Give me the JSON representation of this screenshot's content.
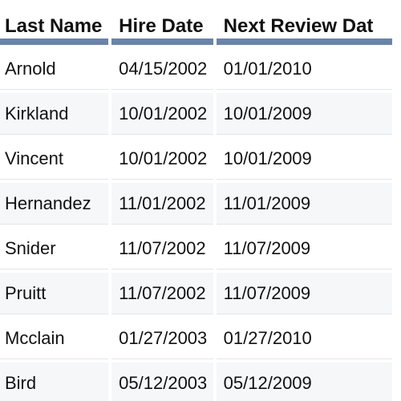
{
  "table": {
    "headers": [
      "Last Name",
      "Hire Date",
      "Next Review Dat"
    ],
    "rows": [
      [
        "Arnold",
        "04/15/2002",
        "01/01/2010"
      ],
      [
        "Kirkland",
        "10/01/2002",
        "10/01/2009"
      ],
      [
        "Vincent",
        "10/01/2002",
        "10/01/2009"
      ],
      [
        "Hernandez",
        "11/01/2002",
        "11/01/2009"
      ],
      [
        "Snider",
        "11/07/2002",
        "11/07/2009"
      ],
      [
        "Pruitt",
        "11/07/2002",
        "11/07/2009"
      ],
      [
        "Mcclain",
        "01/27/2003",
        "01/27/2010"
      ],
      [
        "Bird",
        "05/12/2003",
        "05/12/2009"
      ]
    ]
  },
  "colors": {
    "header_underline": "#6a84a8",
    "row_alt": "#f6f7f9",
    "row_divider": "#e3e5e8",
    "text": "#111111"
  }
}
